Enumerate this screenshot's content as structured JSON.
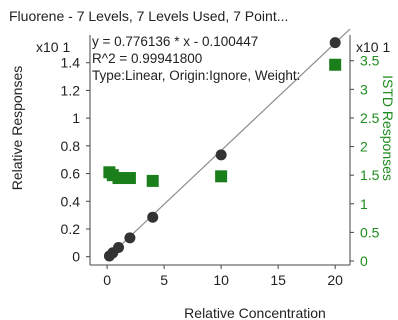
{
  "title": "Fluorene - 7 Levels, 7 Levels Used, 7 Point...",
  "annotations": [
    "y = 0.776136 * x  - 0.100447",
    "R^2 = 0.99941800",
    "Type:Linear, Origin:Ignore, Weight:"
  ],
  "colors": {
    "calibration_points": "#333333",
    "fit_line": "#8c8c8c",
    "istd_points": "#1a7f1a",
    "istd_axis": "#1e8c1e"
  },
  "chart_data": {
    "type": "scatter",
    "title": "Fluorene - 7 Levels, 7 Levels Used, 7 Point...",
    "xlabel": "Relative Concentration",
    "ylabel": "Relative Responses",
    "y2label": "ISTD Responses",
    "y_multiplier": "x10 1",
    "y2_multiplier": "x10 1",
    "xlim": [
      -1.5,
      21.3
    ],
    "ylim": [
      -0.06,
      1.6
    ],
    "y2lim": [
      -0.07,
      3.95
    ],
    "x_ticks": [
      "0",
      "5",
      "10",
      "15",
      "20"
    ],
    "y_ticks": [
      "0",
      "0.2",
      "0.4",
      "0.6",
      "0.8",
      "1",
      "1.2",
      "1.4"
    ],
    "y2_ticks": [
      "0",
      "0.5",
      "1",
      "1.5",
      "2",
      "2.5",
      "3",
      "3.5"
    ],
    "series": [
      {
        "name": "Relative Responses",
        "marker": "circle",
        "axis": "left",
        "x": [
          0.2,
          0.5,
          1,
          2,
          4,
          10,
          20
        ],
        "y": [
          0.005,
          0.028,
          0.066,
          0.136,
          0.285,
          0.735,
          1.545
        ]
      },
      {
        "name": "Fit",
        "type": "line",
        "axis": "left",
        "x": [
          0,
          21.3
        ],
        "y": [
          -0.0100447,
          1.6431
        ]
      },
      {
        "name": "ISTD Responses",
        "marker": "square",
        "axis": "right",
        "x": [
          0.2,
          0.5,
          1,
          2,
          4,
          10,
          20
        ],
        "y": [
          1.55,
          1.5,
          1.45,
          1.45,
          1.4,
          1.48,
          3.43
        ]
      }
    ]
  }
}
